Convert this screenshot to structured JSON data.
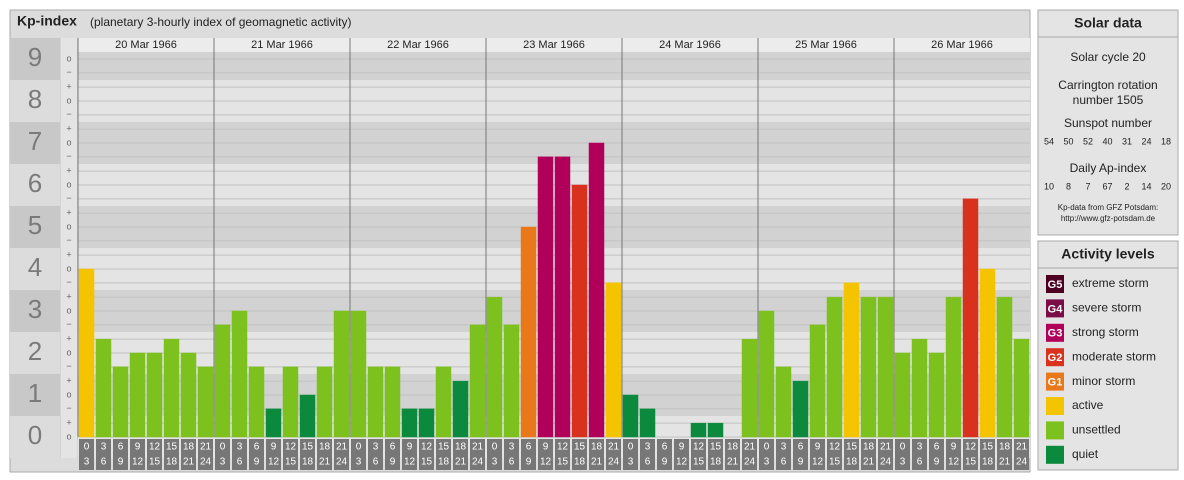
{
  "chart_data": {
    "type": "bar",
    "title": "Kp-index",
    "subtitle": "(planetary 3-hourly index of geomagnetic activity)",
    "days": [
      "20 Mar 1966",
      "21 Mar 1966",
      "22 Mar 1966",
      "23 Mar 1966",
      "24 Mar 1966",
      "25 Mar 1966",
      "26 Mar 1966"
    ],
    "hour_start": [
      0,
      3,
      6,
      9,
      12,
      15,
      18,
      21
    ],
    "hour_end": [
      3,
      6,
      9,
      12,
      15,
      18,
      21,
      24
    ],
    "values": [
      4,
      2.33,
      1.67,
      2,
      2,
      2.33,
      2,
      1.67,
      2.67,
      3,
      1.67,
      0.67,
      1.67,
      1,
      1.67,
      3,
      3,
      1.67,
      1.67,
      0.67,
      0.67,
      1.67,
      1.33,
      2.67,
      3.33,
      2.67,
      5,
      6.67,
      6.67,
      6,
      7,
      3.67,
      1,
      0.67,
      0,
      0,
      0.33,
      0.33,
      0,
      2.33,
      3,
      1.67,
      1.33,
      2.67,
      3.33,
      3.67,
      3.33,
      3.33,
      2,
      2.33,
      2,
      3.33,
      5.67,
      4,
      3.33,
      2.33
    ],
    "colors": [
      "#f5c400",
      "#7dc11f",
      "#7dc11f",
      "#7dc11f",
      "#7dc11f",
      "#7dc11f",
      "#7dc11f",
      "#7dc11f",
      "#7dc11f",
      "#7dc11f",
      "#7dc11f",
      "#0b8a3e",
      "#7dc11f",
      "#0b8a3e",
      "#7dc11f",
      "#7dc11f",
      "#7dc11f",
      "#7dc11f",
      "#7dc11f",
      "#0b8a3e",
      "#0b8a3e",
      "#7dc11f",
      "#0b8a3e",
      "#7dc11f",
      "#7dc11f",
      "#7dc11f",
      "#e8781a",
      "#b0005a",
      "#b0005a",
      "#d8321e",
      "#b0005a",
      "#f5c400",
      "#0b8a3e",
      "#0b8a3e",
      "#0b8a3e",
      "#0b8a3e",
      "#0b8a3e",
      "#0b8a3e",
      "#0b8a3e",
      "#7dc11f",
      "#7dc11f",
      "#7dc11f",
      "#0b8a3e",
      "#7dc11f",
      "#7dc11f",
      "#f5c400",
      "#7dc11f",
      "#7dc11f",
      "#7dc11f",
      "#7dc11f",
      "#7dc11f",
      "#7dc11f",
      "#d8321e",
      "#f5c400",
      "#7dc11f",
      "#7dc11f"
    ],
    "ylim": [
      0,
      9
    ],
    "yticks": [
      0,
      1,
      2,
      3,
      4,
      5,
      6,
      7,
      8,
      9
    ],
    "minor_ticks": [
      {
        "value": 0,
        "label": "o"
      },
      {
        "value": 0.33,
        "label": "+"
      },
      {
        "value": 0.67,
        "label": "−"
      },
      {
        "value": 1,
        "label": "o"
      },
      {
        "value": 1.33,
        "label": "+"
      },
      {
        "value": 1.67,
        "label": "−"
      },
      {
        "value": 2,
        "label": "o"
      },
      {
        "value": 2.33,
        "label": "+"
      },
      {
        "value": 2.67,
        "label": "−"
      },
      {
        "value": 3,
        "label": "o"
      },
      {
        "value": 3.33,
        "label": "+"
      },
      {
        "value": 3.67,
        "label": "−"
      },
      {
        "value": 4,
        "label": "o"
      },
      {
        "value": 4.33,
        "label": "+"
      },
      {
        "value": 4.67,
        "label": "−"
      },
      {
        "value": 5,
        "label": "o"
      },
      {
        "value": 5.33,
        "label": "+"
      },
      {
        "value": 5.67,
        "label": "−"
      },
      {
        "value": 6,
        "label": "o"
      },
      {
        "value": 6.33,
        "label": "+"
      },
      {
        "value": 6.67,
        "label": "−"
      },
      {
        "value": 7,
        "label": "o"
      },
      {
        "value": 7.33,
        "label": "+"
      },
      {
        "value": 7.67,
        "label": "−"
      },
      {
        "value": 8,
        "label": "o"
      },
      {
        "value": 8.33,
        "label": "+"
      },
      {
        "value": 8.67,
        "label": "−"
      },
      {
        "value": 9,
        "label": "o"
      }
    ],
    "grid": true,
    "solar": {
      "title": "Solar data",
      "cycle": "Solar cycle 20",
      "carrington": [
        "Carrington rotation",
        "number 1505"
      ],
      "sunspot_title": "Sunspot number",
      "sunspot": [
        54,
        50,
        52,
        40,
        31,
        24,
        18
      ],
      "ap_title": "Daily Ap-index",
      "ap": [
        10,
        8,
        7,
        67,
        2,
        14,
        20
      ],
      "source": [
        "Kp-data from GFZ Potsdam:",
        "http://www.gfz-potsdam.de"
      ]
    },
    "activity": {
      "title": "Activity levels",
      "levels": [
        {
          "badge": "G5",
          "name": "extreme storm",
          "color": "#4d0020"
        },
        {
          "badge": "G4",
          "name": "severe storm",
          "color": "#7a0d47"
        },
        {
          "badge": "G3",
          "name": "strong storm",
          "color": "#b0005a"
        },
        {
          "badge": "G2",
          "name": "moderate storm",
          "color": "#d8321e"
        },
        {
          "badge": "G1",
          "name": "minor storm",
          "color": "#e8781a"
        },
        {
          "name": "active",
          "color": "#f5c400"
        },
        {
          "name": "unsettled",
          "color": "#7dc11f"
        },
        {
          "name": "quiet",
          "color": "#0b8a3e"
        }
      ]
    }
  }
}
